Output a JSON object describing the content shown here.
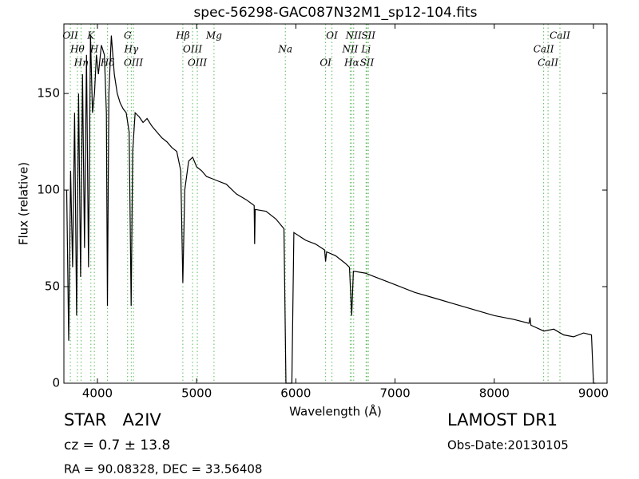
{
  "chart_data": {
    "type": "line",
    "title": "spec-56298-GAC087N32M1_sp12-104.fits",
    "x_label": "Wavelength (Å)",
    "y_label": "Flux (relative)",
    "xlim": [
      3662,
      9137
    ],
    "ylim": [
      0,
      186
    ],
    "xticks": [
      4000,
      5000,
      6000,
      7000,
      8000,
      9000
    ],
    "yticks": [
      0,
      50,
      100,
      150
    ],
    "color": "#000000",
    "line_color": "#5cb85c",
    "x": [
      3690,
      3710,
      3730,
      3750,
      3770,
      3790,
      3810,
      3830,
      3850,
      3870,
      3890,
      3910,
      3930,
      3950,
      3970,
      3990,
      4010,
      4040,
      4070,
      4090,
      4101,
      4115,
      4140,
      4170,
      4200,
      4230,
      4260,
      4290,
      4320,
      4340,
      4355,
      4380,
      4420,
      4460,
      4500,
      4550,
      4600,
      4650,
      4700,
      4750,
      4800,
      4840,
      4861,
      4880,
      4920,
      4960,
      5000,
      5050,
      5100,
      5150,
      5200,
      5300,
      5400,
      5500,
      5580,
      5585,
      5590,
      5700,
      5800,
      5880,
      5900,
      5960,
      5980,
      6100,
      6200,
      6290,
      6300,
      6310,
      6400,
      6500,
      6540,
      6563,
      6580,
      6700,
      6800,
      7000,
      7200,
      7400,
      7600,
      7800,
      8000,
      8200,
      8350,
      8360,
      8370,
      8500,
      8600,
      8700,
      8800,
      8900,
      8980,
      9000,
      9020
    ],
    "values": [
      100,
      22,
      110,
      60,
      140,
      35,
      150,
      55,
      160,
      70,
      170,
      60,
      180,
      140,
      150,
      170,
      160,
      175,
      170,
      140,
      40,
      150,
      180,
      160,
      150,
      145,
      142,
      140,
      130,
      40,
      120,
      140,
      138,
      135,
      137,
      133,
      130,
      127,
      125,
      122,
      120,
      110,
      52,
      100,
      115,
      117,
      112,
      110,
      107,
      106,
      105,
      103,
      98,
      95,
      92,
      72,
      90,
      89,
      85,
      80,
      0,
      0,
      78,
      74,
      72,
      69,
      63,
      68,
      66,
      62,
      60,
      35,
      58,
      57,
      55,
      51,
      47,
      44,
      41,
      38,
      35,
      33,
      31,
      34,
      30,
      27,
      28,
      25,
      24,
      26,
      25,
      0,
      0
    ],
    "lines": [
      {
        "wavelength": 3727,
        "label": "OII"
      },
      {
        "wavelength": 3798,
        "label": "Hθ"
      },
      {
        "wavelength": 3835,
        "label": "Hη"
      },
      {
        "wavelength": 3934,
        "label": "K"
      },
      {
        "wavelength": 3969,
        "label": "H"
      },
      {
        "wavelength": 4102,
        "label": "Hδ"
      },
      {
        "wavelength": 4304,
        "label": "G"
      },
      {
        "wavelength": 4341,
        "label": "Hγ"
      },
      {
        "wavelength": 4363,
        "label": "OIII"
      },
      {
        "wavelength": 4861,
        "label": "Hβ"
      },
      {
        "wavelength": 4959,
        "label": "OIII"
      },
      {
        "wavelength": 5007,
        "label": "OIII"
      },
      {
        "wavelength": 5175,
        "label": "Mg"
      },
      {
        "wavelength": 5894,
        "label": "Na"
      },
      {
        "wavelength": 6300,
        "label": "OI"
      },
      {
        "wavelength": 6364,
        "label": "OI"
      },
      {
        "wavelength": 6548,
        "label": "NII"
      },
      {
        "wavelength": 6563,
        "label": "Hα"
      },
      {
        "wavelength": 6583,
        "label": "NII"
      },
      {
        "wavelength": 6708,
        "label": "Li"
      },
      {
        "wavelength": 6717,
        "label": "SII"
      },
      {
        "wavelength": 6731,
        "label": "SII"
      },
      {
        "wavelength": 8498,
        "label": "CaII"
      },
      {
        "wavelength": 8542,
        "label": "CaII"
      },
      {
        "wavelength": 8662,
        "label": "CaII"
      }
    ]
  },
  "info": {
    "object": "STAR   A2IV",
    "redshift": "cz = 0.7 ± 13.8",
    "coords": "RA = 90.08328, DEC = 33.56408",
    "survey": "LAMOST DR1",
    "obs_date": "Obs-Date:20130105"
  }
}
